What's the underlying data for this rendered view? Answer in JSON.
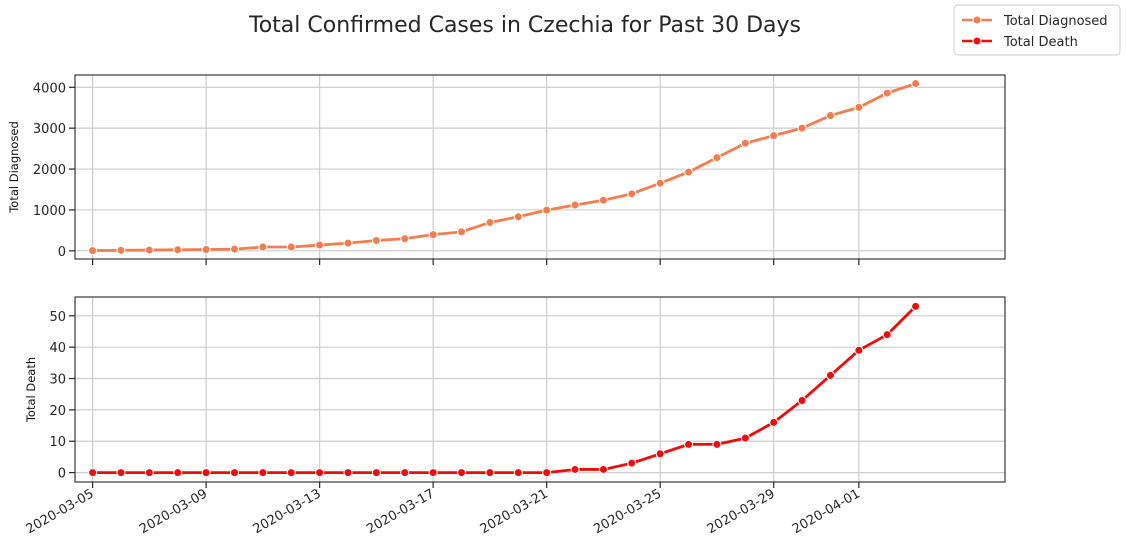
{
  "title": "Total Confirmed Cases in Czechia for Past 30 Days",
  "legend": [
    {
      "label": "Total Diagnosed",
      "color": "#f47c4e"
    },
    {
      "label": "Total Death",
      "color": "#ee0b0b"
    }
  ],
  "chart_data": [
    {
      "type": "line",
      "ylabel": "Total Diagnosed",
      "ylim": [
        -200,
        4300
      ],
      "yticks": [
        0,
        1000,
        2000,
        3000,
        4000
      ],
      "grid": true,
      "color": "#f47c4e",
      "x": [
        "2020-03-05",
        "2020-03-06",
        "2020-03-07",
        "2020-03-08",
        "2020-03-09",
        "2020-03-10",
        "2020-03-11",
        "2020-03-12",
        "2020-03-13",
        "2020-03-14",
        "2020-03-15",
        "2020-03-16",
        "2020-03-17",
        "2020-03-18",
        "2020-03-19",
        "2020-03-20",
        "2020-03-21",
        "2020-03-22",
        "2020-03-23",
        "2020-03-24",
        "2020-03-25",
        "2020-03-26",
        "2020-03-27",
        "2020-03-28",
        "2020-03-29",
        "2020-03-30",
        "2020-03-31",
        "2020-04-01",
        "2020-04-02",
        "2020-04-03"
      ],
      "series": [
        {
          "name": "Total Diagnosed",
          "values": [
            5,
            12,
            19,
            26,
            32,
            40,
            94,
            94,
            141,
            189,
            253,
            298,
            396,
            464,
            694,
            833,
            995,
            1120,
            1236,
            1394,
            1654,
            1925,
            2279,
            2631,
            2817,
            3001,
            3308,
            3508,
            3858,
            4091
          ]
        }
      ]
    },
    {
      "type": "line",
      "ylabel": "Total Death",
      "ylim": [
        -3,
        56
      ],
      "yticks": [
        0,
        10,
        20,
        30,
        40,
        50
      ],
      "grid": true,
      "color": "#ee0b0b",
      "x": [
        "2020-03-05",
        "2020-03-06",
        "2020-03-07",
        "2020-03-08",
        "2020-03-09",
        "2020-03-10",
        "2020-03-11",
        "2020-03-12",
        "2020-03-13",
        "2020-03-14",
        "2020-03-15",
        "2020-03-16",
        "2020-03-17",
        "2020-03-18",
        "2020-03-19",
        "2020-03-20",
        "2020-03-21",
        "2020-03-22",
        "2020-03-23",
        "2020-03-24",
        "2020-03-25",
        "2020-03-26",
        "2020-03-27",
        "2020-03-28",
        "2020-03-29",
        "2020-03-30",
        "2020-03-31",
        "2020-04-01",
        "2020-04-02",
        "2020-04-03"
      ],
      "xticks": [
        "2020-03-05",
        "2020-03-09",
        "2020-03-13",
        "2020-03-17",
        "2020-03-21",
        "2020-03-25",
        "2020-03-29",
        "2020-04-01"
      ],
      "series": [
        {
          "name": "Total Death",
          "values": [
            0,
            0,
            0,
            0,
            0,
            0,
            0,
            0,
            0,
            0,
            0,
            0,
            0,
            0,
            0,
            0,
            0,
            1,
            1,
            3,
            6,
            9,
            9,
            11,
            16,
            23,
            31,
            39,
            44,
            53
          ]
        }
      ]
    }
  ]
}
